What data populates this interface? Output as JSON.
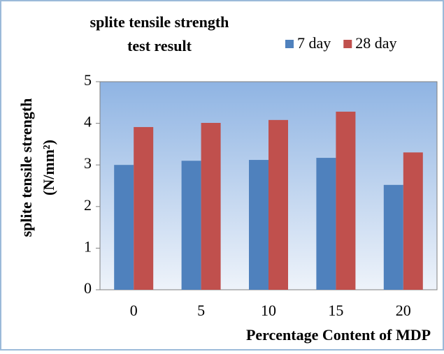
{
  "chart_data": {
    "type": "bar",
    "title": [
      "splite tensile strength",
      "test result"
    ],
    "ylabel": [
      "splite tensile strength",
      "(N/mm²)"
    ],
    "xlabel": "Percentage Content of MDP",
    "categories": [
      "0",
      "5",
      "10",
      "15",
      "20"
    ],
    "series": [
      {
        "name": "7 day",
        "color": "#4f81bd",
        "values": [
          3.0,
          3.1,
          3.12,
          3.17,
          2.52
        ]
      },
      {
        "name": "28 day",
        "color": "#c0504d",
        "values": [
          3.91,
          4.01,
          4.08,
          4.28,
          3.3
        ]
      }
    ],
    "ylim": [
      0,
      5
    ],
    "yticks": [
      0,
      1,
      2,
      3,
      4,
      5
    ],
    "grid": false,
    "legend": "top-right"
  }
}
